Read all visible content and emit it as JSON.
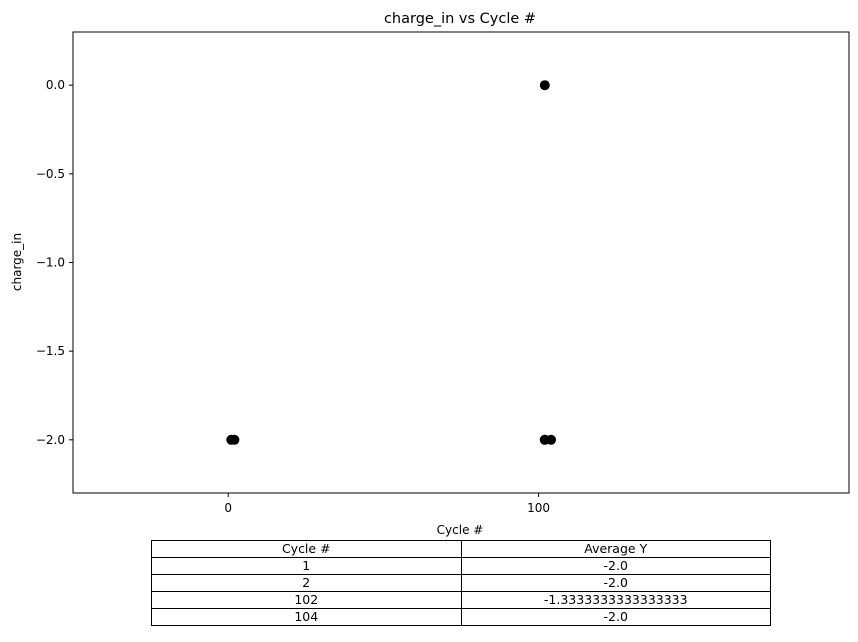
{
  "chart_data": {
    "type": "scatter",
    "title": "charge_in vs Cycle #",
    "xlabel": "Cycle #",
    "ylabel": "charge_in",
    "xlim": [
      -50,
      200
    ],
    "ylim": [
      -2.3,
      0.3
    ],
    "xticks": [
      0,
      100
    ],
    "xtick_labels": [
      "0",
      "100"
    ],
    "yticks": [
      0.0,
      -0.5,
      -1.0,
      -1.5,
      -2.0
    ],
    "ytick_labels": [
      "0.0",
      "−0.5",
      "−1.0",
      "−1.5",
      "−2.0"
    ],
    "grid": false,
    "marker_color": "#000000",
    "points": [
      {
        "x": 1,
        "y": -2.0
      },
      {
        "x": 2,
        "y": -2.0
      },
      {
        "x": 102,
        "y": -2.0
      },
      {
        "x": 102,
        "y": 0.0
      },
      {
        "x": 102,
        "y": -2.0
      },
      {
        "x": 104,
        "y": -2.0
      }
    ]
  },
  "table": {
    "headers": [
      "Cycle #",
      "Average Y"
    ],
    "rows": [
      [
        "1",
        "-2.0"
      ],
      [
        "2",
        "-2.0"
      ],
      [
        "102",
        "-1.3333333333333333"
      ],
      [
        "104",
        "-2.0"
      ]
    ]
  }
}
